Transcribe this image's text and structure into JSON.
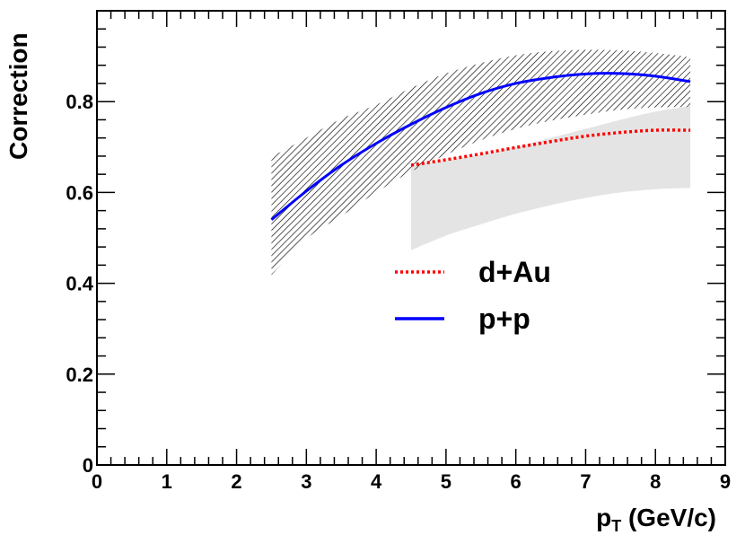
{
  "chart_data": {
    "type": "line",
    "title": "",
    "xlabel": "p",
    "xlabel_sub": "T",
    "xlabel_unit": " (GeV/c)",
    "ylabel": "Correction",
    "xlim": [
      0,
      9
    ],
    "ylim": [
      0,
      1.0
    ],
    "x_ticks": [
      "0",
      "1",
      "2",
      "3",
      "4",
      "5",
      "6",
      "7",
      "8",
      "9"
    ],
    "y_ticks": [
      "0",
      "0.2",
      "0.4",
      "0.6",
      "0.8"
    ],
    "grid": false,
    "legend_position": "center-right",
    "series": [
      {
        "name": "d+Au",
        "color": "#ff0000",
        "style": "dotted",
        "x": [
          4.5,
          5.0,
          5.5,
          6.0,
          6.5,
          7.0,
          7.5,
          8.0,
          8.5
        ],
        "y": [
          0.66,
          0.672,
          0.685,
          0.699,
          0.712,
          0.724,
          0.732,
          0.737,
          0.737
        ],
        "band_color": "#e4e4e4",
        "band_style": "solid",
        "band_lower": [
          0.473,
          0.505,
          0.53,
          0.553,
          0.572,
          0.588,
          0.6,
          0.607,
          0.61
        ],
        "band_upper": [
          0.66,
          0.67,
          0.683,
          0.7,
          0.72,
          0.74,
          0.76,
          0.778,
          0.79
        ]
      },
      {
        "name": "p+p",
        "color": "#0000ff",
        "style": "solid",
        "x": [
          2.5,
          3.0,
          3.5,
          4.0,
          4.5,
          5.0,
          5.5,
          6.0,
          6.5,
          7.0,
          7.5,
          8.0,
          8.5
        ],
        "y": [
          0.54,
          0.603,
          0.66,
          0.708,
          0.75,
          0.787,
          0.818,
          0.84,
          0.853,
          0.861,
          0.862,
          0.856,
          0.844
        ],
        "band_color": "#000000",
        "band_style": "hatched",
        "band_lower": [
          0.418,
          0.498,
          0.548,
          0.6,
          0.646,
          0.683,
          0.715,
          0.74,
          0.758,
          0.771,
          0.782,
          0.787,
          0.788
        ],
        "band_upper": [
          0.678,
          0.72,
          0.762,
          0.793,
          0.83,
          0.862,
          0.885,
          0.902,
          0.911,
          0.914,
          0.913,
          0.907,
          0.898
        ]
      }
    ]
  }
}
